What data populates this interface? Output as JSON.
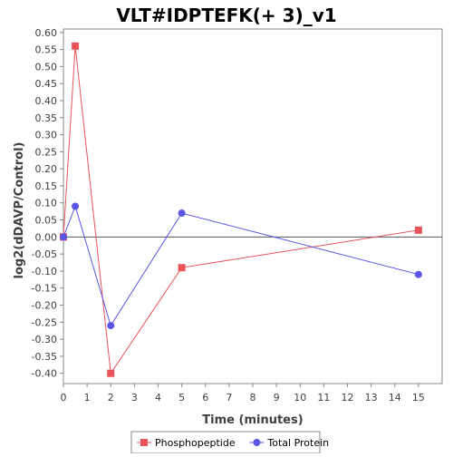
{
  "chart_data": {
    "type": "line",
    "title": "VLT#IDPTEFK(+ 3)_v1",
    "xlabel": "Time (minutes)",
    "ylabel": "log2(dDAVP/Control)",
    "xlim": [
      0,
      16
    ],
    "ylim": [
      -0.43,
      0.61
    ],
    "x_ticks": [
      0,
      1,
      2,
      3,
      4,
      5,
      6,
      7,
      8,
      9,
      10,
      11,
      12,
      13,
      14,
      15
    ],
    "y_ticks": [
      0.6,
      0.55,
      0.5,
      0.45,
      0.4,
      0.35,
      0.3,
      0.25,
      0.2,
      0.15,
      0.1,
      0.05,
      0.0,
      -0.05,
      -0.1,
      -0.15,
      -0.2,
      -0.25,
      -0.3,
      -0.35,
      -0.4
    ],
    "zero_line": true,
    "grid": false,
    "legend_position": "bottom",
    "series": [
      {
        "name": "Phosphopeptide",
        "color": "#e8545a",
        "marker": "square",
        "x": [
          0,
          0.5,
          2,
          5,
          15
        ],
        "y": [
          0.0,
          0.56,
          -0.4,
          -0.09,
          0.02
        ]
      },
      {
        "name": "Total Protein",
        "color": "#5a55e6",
        "marker": "circle",
        "x": [
          0,
          0.5,
          2,
          5,
          15
        ],
        "y": [
          0.0,
          0.09,
          -0.26,
          0.07,
          -0.11
        ]
      }
    ]
  }
}
